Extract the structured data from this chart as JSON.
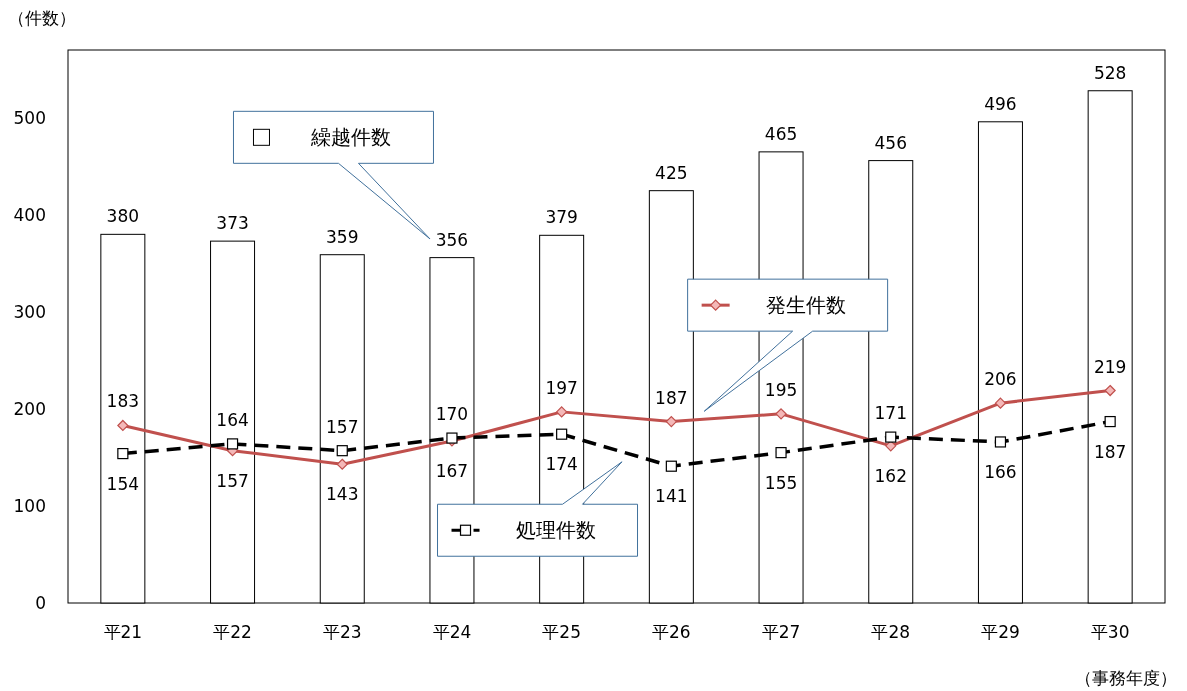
{
  "chart_data": {
    "type": "bar",
    "ylabel": "（件数）",
    "xlabel": "（事務年度）",
    "categories": [
      "平21",
      "平22",
      "平23",
      "平24",
      "平25",
      "平26",
      "平27",
      "平28",
      "平29",
      "平30"
    ],
    "series": [
      {
        "name": "繰越件数",
        "color": "#ffffff",
        "values": [
          380,
          373,
          359,
          356,
          379,
          425,
          465,
          456,
          496,
          528
        ]
      },
      {
        "name": "発生件数",
        "type": "line",
        "color": "#c0504d",
        "marker": "diamond",
        "line_style": "solid",
        "values": [
          183,
          157,
          143,
          167,
          197,
          187,
          195,
          162,
          206,
          219
        ]
      },
      {
        "name": "処理件数",
        "type": "line",
        "color": "#000000",
        "marker": "square",
        "line_style": "dashed",
        "values": [
          154,
          164,
          157,
          170,
          174,
          141,
          155,
          171,
          166,
          187
        ]
      }
    ],
    "ylim": [
      0,
      570
    ],
    "yticks": [
      0,
      100,
      200,
      300,
      400,
      500
    ],
    "grid": false,
    "legend": "center",
    "data_labels": true
  }
}
